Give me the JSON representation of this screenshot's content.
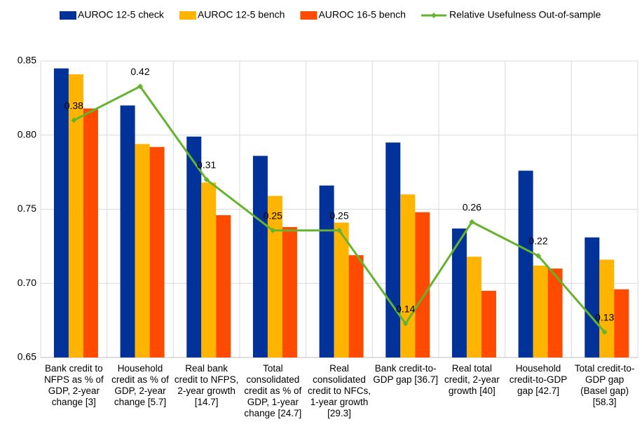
{
  "chart_data": {
    "type": "bar",
    "categories": [
      "Bank credit to NFPS as % of GDP, 2-year change [3]",
      "Household credit as % of GDP, 2-year change [5.7]",
      "Real bank credit to NFPS, 2-year growth [14.7]",
      "Total consolidated credit as % of GDP, 1-year change [24.7]",
      "Real consolidated credit to NFCs, 1-year growth [29.3]",
      "Bank credit-to-GDP gap [36.7]",
      "Real total credit, 2-year growth [40]",
      "Household credit-to-GDP gap [42.7]",
      "Total credit-to-GDP gap (Basel gap) [58.3]"
    ],
    "series": [
      {
        "name": "AUROC 12-5 check",
        "color": "#003299",
        "values": [
          0.845,
          0.82,
          0.799,
          0.786,
          0.766,
          0.795,
          0.737,
          0.776,
          0.731
        ]
      },
      {
        "name": "AUROC 12-5 bench",
        "color": "#FFB400",
        "values": [
          0.841,
          0.794,
          0.768,
          0.759,
          0.741,
          0.76,
          0.718,
          0.712,
          0.716
        ]
      },
      {
        "name": "AUROC 16-5 bench",
        "color": "#FF4B00",
        "values": [
          0.818,
          0.792,
          0.746,
          0.738,
          0.719,
          0.748,
          0.695,
          0.71,
          0.696
        ]
      },
      {
        "name": "Relative Usefulness Out-of-sample",
        "type": "line",
        "axis": "y2",
        "color": "#65B32E",
        "values": [
          0.38,
          0.42,
          0.31,
          0.25,
          0.25,
          0.14,
          0.26,
          0.22,
          0.13
        ]
      }
    ],
    "ylim": [
      0.65,
      0.85
    ],
    "yticks": [
      0.65,
      {
        "value": 0.7,
        "label": "0.70"
      },
      0.75,
      {
        "value": 0.8,
        "label": "0.80"
      },
      0.85
    ],
    "y2lim": [
      0.1,
      0.45
    ],
    "grid": true,
    "legend": "top"
  }
}
